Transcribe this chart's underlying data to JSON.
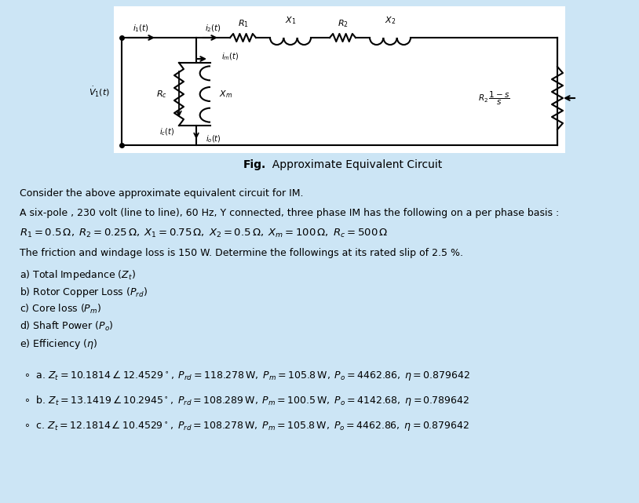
{
  "background_color": "#cce5f5",
  "circuit_bg": "#ffffff",
  "fig_bold": "Fig.",
  "fig_rest": "  Approximate Equivalent Circuit",
  "line1": "Consider the above approximate equivalent circuit for IM.",
  "line2": "A six-pole , 230 volt (line to line), 60 Hz, Y connected, three phase IM has the following on a per phase basis :",
  "line3": "$R_1 = 0.5\\,\\Omega,\\; R_2 = 0.25\\,\\Omega,\\; X_1 = 0.75\\,\\Omega,\\; X_2 = 0.5\\,\\Omega,\\; X_m = 100\\,\\Omega,\\; R_c = 500\\,\\Omega$",
  "line4": "The friction and windage loss is 150 W. Determine the followings at its rated slip of 2.5 %.",
  "line5a": "a) Total Impedance $(Z_t)$",
  "line5b": "b) Rotor Copper Loss $(P_{rd})$",
  "line5c": "c) Core loss $(P_m)$",
  "line5d": "d) Shaft Power $(P_o)$",
  "line5e": "e) Efficiency $(\\eta)$",
  "opt_a": "$\\circ$  a. $Z_t = 10.1814\\,\\angle\\,12.4529^\\circ,\\; P_{rd} = 118.278\\,\\mathrm{W},\\; P_m = 105.8\\,\\mathrm{W},\\; P_o = 4462.86,\\; \\eta = 0.879642$",
  "opt_b": "$\\circ$  b. $Z_t = 13.1419\\,\\angle\\,10.2945^\\circ,\\; P_{rd} = 108.289\\,\\mathrm{W},\\; P_m = 100.5\\,\\mathrm{W},\\; P_o = 4142.68,\\; \\eta = 0.789642$",
  "opt_c": "$\\circ$  c. $Z_t = 12.1814\\,\\angle\\,10.4529^\\circ,\\; P_{rd} = 108.278\\,\\mathrm{W},\\; P_m = 105.8\\,\\mathrm{W},\\; P_o = 4462.86,\\; \\eta = 0.879642$"
}
